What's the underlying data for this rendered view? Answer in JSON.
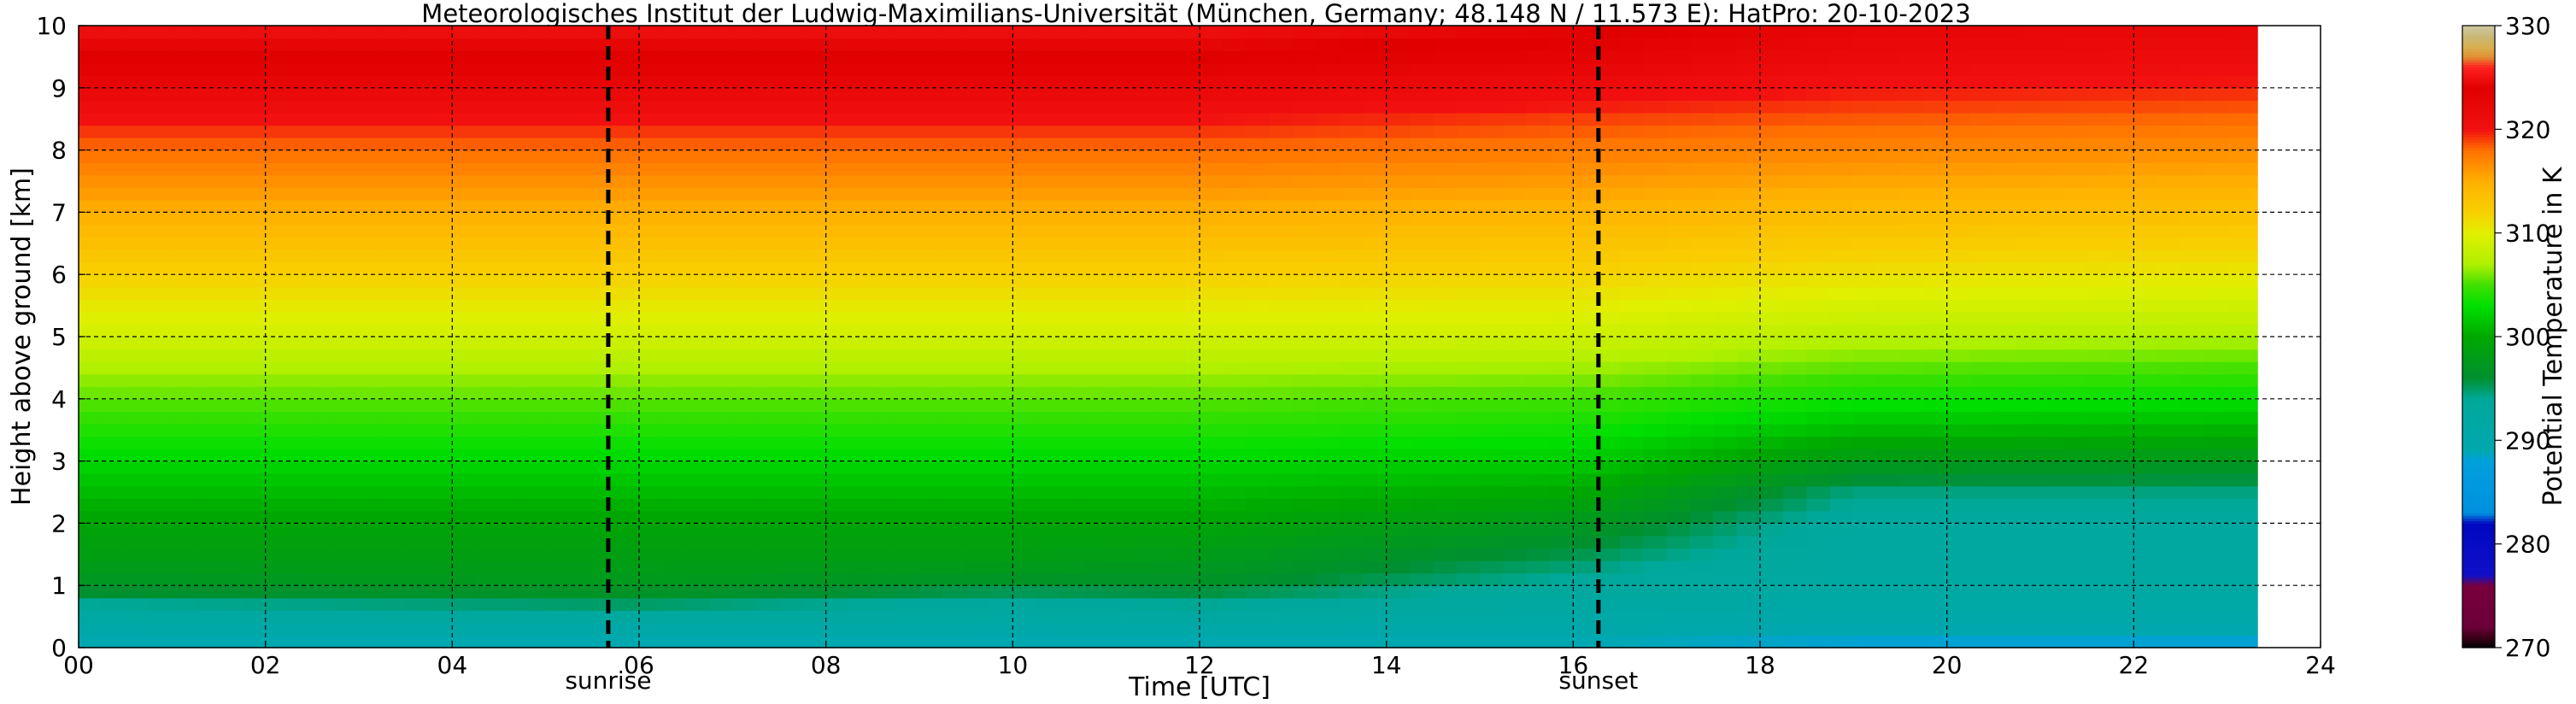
{
  "chart_data": {
    "type": "heatmap",
    "title": "Meteorologisches Institut der Ludwig-Maximilians-Universität (München, Germany; 48.148 N / 11.573 E):    HatPro: 20-10-2023",
    "xlabel": "Time [UTC]",
    "ylabel": "Height above ground [km]",
    "colorbar_label": "Potential Temperature in K",
    "xlim": [
      0,
      24
    ],
    "ylim": [
      0,
      10
    ],
    "x_ticks": [
      0,
      2,
      4,
      6,
      8,
      10,
      12,
      14,
      16,
      18,
      20,
      22,
      24
    ],
    "x_tick_labels": [
      "00",
      "02",
      "04",
      "06",
      "08",
      "10",
      "12",
      "14",
      "16",
      "18",
      "20",
      "22",
      "24"
    ],
    "y_ticks": [
      0,
      1,
      2,
      3,
      4,
      5,
      6,
      7,
      8,
      9,
      10
    ],
    "y_tick_labels": [
      "0",
      "1",
      "2",
      "3",
      "4",
      "5",
      "6",
      "7",
      "8",
      "9",
      "10"
    ],
    "colorbar_range": [
      270,
      330
    ],
    "colorbar_ticks": [
      270,
      280,
      290,
      300,
      310,
      320,
      330
    ],
    "colorbar_tick_labels": [
      "270",
      "280",
      "290",
      "300",
      "310",
      "320",
      "330"
    ],
    "grid": true,
    "annotations": [
      {
        "label": "sunrise",
        "x": 5.67,
        "style": "dashed-black"
      },
      {
        "label": "sunset",
        "x": 16.27,
        "style": "dashed-black"
      }
    ],
    "data_end_x": 23.33,
    "colormap": [
      [
        270,
        "#000000"
      ],
      [
        271,
        "#3a0018"
      ],
      [
        272,
        "#6b0038"
      ],
      [
        276,
        "#78003c"
      ],
      [
        277,
        "#1010c8"
      ],
      [
        282,
        "#0008c0"
      ],
      [
        283,
        "#0090e0"
      ],
      [
        288,
        "#00a0dc"
      ],
      [
        289,
        "#00a8b0"
      ],
      [
        294,
        "#00a89a"
      ],
      [
        296,
        "#009030"
      ],
      [
        300,
        "#00a800"
      ],
      [
        303,
        "#00e000"
      ],
      [
        305,
        "#40e000"
      ],
      [
        307,
        "#b0f000"
      ],
      [
        310,
        "#e0f000"
      ],
      [
        312,
        "#f8d000"
      ],
      [
        315,
        "#ffb000"
      ],
      [
        318,
        "#ff7000"
      ],
      [
        320,
        "#f21010"
      ],
      [
        324,
        "#e00000"
      ],
      [
        326,
        "#ff2020"
      ],
      [
        327,
        "#e09030"
      ],
      [
        328,
        "#d8b050"
      ],
      [
        329,
        "#c8b878"
      ],
      [
        330,
        "#d0c8a0"
      ]
    ],
    "heights_km": [
      0,
      0.2,
      0.5,
      0.8,
      1.0,
      1.5,
      2.0,
      2.5,
      3.0,
      3.5,
      4.0,
      4.5,
      5.0,
      5.5,
      6.0,
      6.5,
      7.0,
      7.5,
      8.0,
      8.5,
      9.0,
      9.5,
      10.0
    ],
    "profiles": [
      {
        "time": 0,
        "theta": [
          288,
          290,
          292,
          295,
          297,
          298.5,
          299.5,
          301,
          302.5,
          304,
          305.5,
          307,
          309,
          310.5,
          312,
          313.5,
          315,
          316.5,
          318,
          320,
          322,
          324,
          325
        ]
      },
      {
        "time": 6,
        "theta": [
          288,
          290,
          293,
          296,
          297.5,
          298.5,
          299.5,
          301,
          302.5,
          304,
          305.5,
          307,
          309,
          310.5,
          312,
          313.5,
          315,
          316.5,
          318,
          320,
          322,
          324,
          325
        ]
      },
      {
        "time": 10,
        "theta": [
          288,
          290,
          292,
          294,
          296.5,
          298.5,
          299.5,
          301,
          302.5,
          304,
          305.5,
          307,
          309,
          310.5,
          312,
          313.5,
          315,
          316.5,
          318,
          320,
          322,
          324,
          325
        ]
      },
      {
        "time": 12,
        "theta": [
          288,
          290,
          292.5,
          295,
          296.5,
          298,
          299.5,
          301,
          302.5,
          304,
          305.5,
          307,
          309,
          310.5,
          312,
          313.5,
          315,
          316.5,
          318,
          320,
          322,
          324,
          325
        ]
      },
      {
        "time": 16,
        "theta": [
          288,
          290,
          291.5,
          292.5,
          293.5,
          295.5,
          297.5,
          300,
          302,
          303.5,
          305,
          306.8,
          308.8,
          310.3,
          311.8,
          313.2,
          314.6,
          316,
          317.5,
          319,
          321,
          323,
          324.5
        ]
      },
      {
        "time": 19,
        "theta": [
          287.5,
          289,
          290.5,
          291.5,
          292,
          292.5,
          293,
          294.5,
          298,
          301,
          303.5,
          305.5,
          307.5,
          309.3,
          311,
          312.5,
          314,
          315.5,
          317,
          318.5,
          320,
          321.5,
          322.5
        ]
      },
      {
        "time": 24,
        "theta": [
          287.5,
          289,
          290.5,
          291.5,
          292,
          292.5,
          293,
          294.5,
          297.5,
          300.5,
          303,
          305,
          307,
          308.8,
          310.5,
          312,
          313.5,
          315,
          316.5,
          318,
          319.5,
          321,
          322
        ]
      }
    ]
  }
}
